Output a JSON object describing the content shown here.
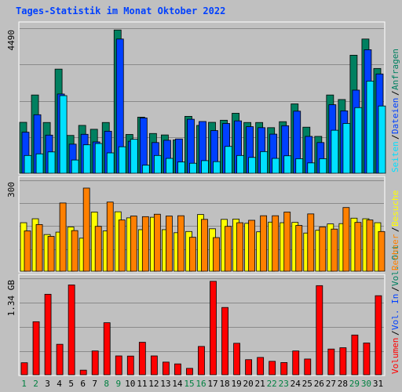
{
  "colors": {
    "background": "#C0C0C0",
    "title": "#0040FF",
    "weekday_label": "#000000",
    "weekend_label": "#008040",
    "sep": "#8A8A8A",
    "anfragen": "#008060",
    "dateien": "#0040FF",
    "seiten": "#00E0FF",
    "besuche": "#FFFF00",
    "rechner": "#FF8000",
    "volumen": "#FF0000"
  },
  "chart_data": {
    "type": "bar",
    "title": "Tages-Statistik im Monat Oktober 2022",
    "x": [
      "1",
      "2",
      "3",
      "4",
      "5",
      "6",
      "7",
      "8",
      "9",
      "10",
      "11",
      "12",
      "13",
      "14",
      "15",
      "16",
      "17",
      "18",
      "19",
      "20",
      "21",
      "22",
      "23",
      "24",
      "25",
      "26",
      "27",
      "28",
      "29",
      "30",
      "31"
    ],
    "weekend_days": [
      "1",
      "2",
      "8",
      "9",
      "15",
      "16",
      "22",
      "23",
      "29",
      "30"
    ],
    "grid": true,
    "panels": [
      {
        "id": "top",
        "ylim": [
          0,
          4490
        ],
        "ytick_label": "4490",
        "series": [
          {
            "name": "Anfragen",
            "color": "#008060",
            "values": [
              1575,
              2420,
              1570,
              3220,
              1170,
              1480,
              1360,
              1570,
              4430,
              1200,
              1735,
              1230,
              1185,
              1030,
              1760,
              1480,
              1575,
              1640,
              1855,
              1570,
              1570,
              1410,
              1595,
              2145,
              1425,
              1140,
              2420,
              2280,
              3650,
              4150,
              3240
            ]
          },
          {
            "name": "Dateien",
            "color": "#0040FF",
            "values": [
              1270,
              1810,
              1180,
              2450,
              900,
              1205,
              970,
              1300,
              4150,
              990,
              1710,
              950,
              1020,
              1060,
              1670,
              1600,
              1320,
              1540,
              1620,
              1440,
              1410,
              1210,
              1470,
              1920,
              1140,
              950,
              2120,
              1930,
              2570,
              3820,
              3070
            ]
          },
          {
            "name": "Seiten",
            "color": "#00E0FF",
            "values": [
              550,
              600,
              660,
              2400,
              410,
              880,
              920,
              630,
              820,
              1050,
              250,
              550,
              460,
              350,
              310,
              390,
              360,
              830,
              550,
              490,
              670,
              460,
              540,
              450,
              320,
              450,
              1330,
              1540,
              2030,
              2850,
              2080
            ]
          }
        ]
      },
      {
        "id": "middle",
        "ylim": [
          0,
          300
        ],
        "ytick_label": "300",
        "series": [
          {
            "name": "Besuche",
            "color": "#FFFF00",
            "values": [
              160,
              173,
              121,
              129,
              146,
              109,
              195,
              133,
              196,
              176,
              137,
              178,
              137,
              127,
              131,
              187,
              140,
              171,
              172,
              158,
              130,
              162,
              160,
              161,
              126,
              135,
              156,
              157,
              175,
              173,
              160
            ]
          },
          {
            "name": "Rechner",
            "color": "#FF8000",
            "values": [
              133,
              154,
              115,
              225,
              134,
              274,
              148,
              228,
              169,
              182,
              180,
              188,
              182,
              183,
              112,
              171,
              111,
              148,
              160,
              168,
              183,
              183,
              195,
              151,
              189,
              146,
              139,
              210,
              161,
              169,
              131
            ]
          }
        ]
      },
      {
        "id": "bottom",
        "ylim": [
          0,
          1.34
        ],
        "ytick_label": "1.34 GB",
        "series": [
          {
            "name": "Volumen",
            "color": "#FF0000",
            "values": [
              0.167,
              0.738,
              1.12,
              0.424,
              1.25,
              0.064,
              0.331,
              0.724,
              0.262,
              0.26,
              0.452,
              0.262,
              0.176,
              0.151,
              0.089,
              0.394,
              1.3,
              0.936,
              0.438,
              0.21,
              0.241,
              0.187,
              0.17,
              0.331,
              0.219,
              1.24,
              0.358,
              0.376,
              0.553,
              0.442,
              1.1
            ]
          }
        ]
      }
    ],
    "legend": [
      "Volumen",
      "Vol. In",
      "Vol. Out",
      "Rechner",
      "Besuche",
      "Seiten",
      "Dateien",
      "Anfragen"
    ],
    "legend_colors": [
      "#FF0000",
      "#0040FF",
      "#008060",
      "#FF8000",
      "#FFFF00",
      "#00E0FF",
      "#0040FF",
      "#008060"
    ],
    "legend_placement": "right, vertical"
  }
}
